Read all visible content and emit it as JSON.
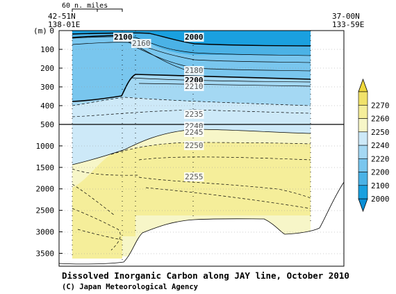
{
  "chart_data": {
    "type": "contour",
    "title": "Dissolved Inorganic Carbon along JAY line, October 2010",
    "credit": "(C) Japan Meteorological Agency",
    "y_unit_label": "(m)",
    "scale_bar_label": "60 n. miles",
    "start_station": {
      "lat": "42-51N",
      "lon": "138-01E"
    },
    "end_station": {
      "lat": "37-00N",
      "lon": "133-59E"
    },
    "y_ticks_upper": [
      0,
      100,
      200,
      300,
      400,
      500
    ],
    "y_ticks_lower": [
      1000,
      1500,
      2000,
      2500,
      3000,
      3500
    ],
    "y_range": [
      0,
      3800
    ],
    "depth_break": 500,
    "contour_labels": [
      {
        "text": "2100",
        "bold": true
      },
      {
        "text": "2000",
        "bold": true
      },
      {
        "text": "2160",
        "bold": false
      },
      {
        "text": "2180",
        "bold": false
      },
      {
        "text": "2200",
        "bold": true
      },
      {
        "text": "2210",
        "bold": false
      },
      {
        "text": "2235",
        "bold": false
      },
      {
        "text": "2240",
        "bold": false
      },
      {
        "text": "2245",
        "bold": false
      },
      {
        "text": "2250",
        "bold": false
      },
      {
        "text": "2255",
        "bold": false
      }
    ],
    "colorbar": {
      "levels": [
        2000,
        2100,
        2200,
        2220,
        2240,
        2250,
        2260,
        2270
      ],
      "colors": [
        "#1aa0df",
        "#4bb2e6",
        "#79c6ee",
        "#a4d8f3",
        "#cde9f8",
        "#f7f6c8",
        "#f5ee9a",
        "#f1e26a"
      ],
      "under_color": "#0a8fd6",
      "over_color": "#f0d83c"
    }
  }
}
